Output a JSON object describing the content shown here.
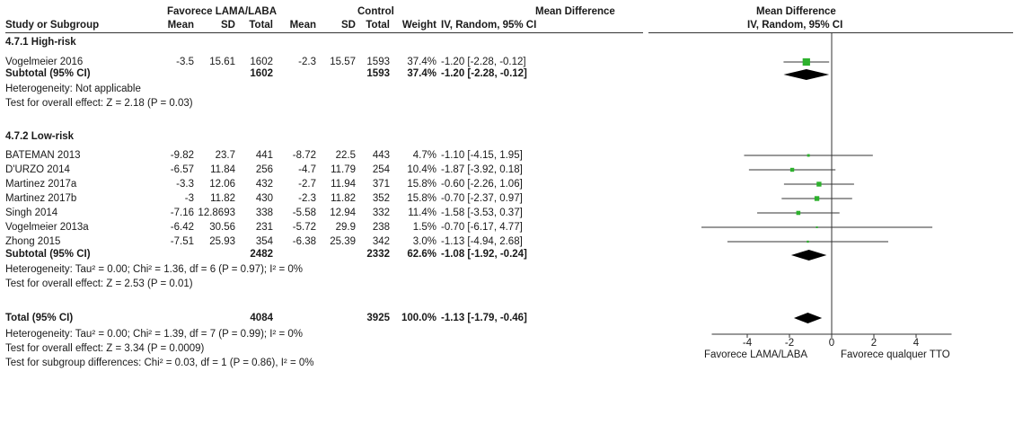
{
  "header": {
    "group_exp": "Favorece LAMA/LABA",
    "group_ctrl": "Control",
    "md_title": "Mean Difference",
    "md_method": "IV, Random, 95% CI",
    "plot_title": "Mean Difference",
    "plot_method": "IV, Random, 95% CI",
    "cols": {
      "study": "Study or Subgroup",
      "mean1": "Mean",
      "sd1": "SD",
      "total1": "Total",
      "mean2": "Mean",
      "sd2": "SD",
      "total2": "Total",
      "weight": "Weight"
    }
  },
  "subgroups": [
    {
      "title": "4.7.1 High-risk",
      "studies": [
        {
          "name": "Vogelmeier 2016",
          "mean1": "-3.5",
          "sd1": "15.61",
          "total1": "1602",
          "mean2": "-2.3",
          "sd2": "15.57",
          "total2": "1593",
          "weight": "37.4%",
          "ci_text": "-1.20 [-2.28, -0.12]"
        }
      ],
      "subtotal": {
        "label": "Subtotal (95% CI)",
        "total1": "1602",
        "total2": "1593",
        "weight": "37.4%",
        "ci_text": "-1.20 [-2.28, -0.12]"
      },
      "heterogeneity": "Heterogeneity: Not applicable",
      "overall": "Test for overall effect: Z = 2.18 (P = 0.03)"
    },
    {
      "title": "4.7.2 Low-risk",
      "studies": [
        {
          "name": "BATEMAN 2013",
          "mean1": "-9.82",
          "sd1": "23.7",
          "total1": "441",
          "mean2": "-8.72",
          "sd2": "22.5",
          "total2": "443",
          "weight": "4.7%",
          "ci_text": "-1.10 [-4.15, 1.95]"
        },
        {
          "name": "D'URZO 2014",
          "mean1": "-6.57",
          "sd1": "11.84",
          "total1": "256",
          "mean2": "-4.7",
          "sd2": "11.79",
          "total2": "254",
          "weight": "10.4%",
          "ci_text": "-1.87 [-3.92, 0.18]"
        },
        {
          "name": "Martinez 2017a",
          "mean1": "-3.3",
          "sd1": "12.06",
          "total1": "432",
          "mean2": "-2.7",
          "sd2": "11.94",
          "total2": "371",
          "weight": "15.8%",
          "ci_text": "-0.60 [-2.26, 1.06]"
        },
        {
          "name": "Martinez 2017b",
          "mean1": "-3",
          "sd1": "11.82",
          "total1": "430",
          "mean2": "-2.3",
          "sd2": "11.82",
          "total2": "352",
          "weight": "15.8%",
          "ci_text": "-0.70 [-2.37, 0.97]"
        },
        {
          "name": "Singh 2014",
          "mean1": "-7.16",
          "sd1": "12.8693",
          "total1": "338",
          "mean2": "-5.58",
          "sd2": "12.94",
          "total2": "332",
          "weight": "11.4%",
          "ci_text": "-1.58 [-3.53, 0.37]"
        },
        {
          "name": "Vogelmeier 2013a",
          "mean1": "-6.42",
          "sd1": "30.56",
          "total1": "231",
          "mean2": "-5.72",
          "sd2": "29.9",
          "total2": "238",
          "weight": "1.5%",
          "ci_text": "-0.70 [-6.17, 4.77]"
        },
        {
          "name": "Zhong 2015",
          "mean1": "-7.51",
          "sd1": "25.93",
          "total1": "354",
          "mean2": "-6.38",
          "sd2": "25.39",
          "total2": "342",
          "weight": "3.0%",
          "ci_text": "-1.13 [-4.94, 2.68]"
        }
      ],
      "subtotal": {
        "label": "Subtotal (95% CI)",
        "total1": "2482",
        "total2": "2332",
        "weight": "62.6%",
        "ci_text": "-1.08 [-1.92, -0.24]"
      },
      "heterogeneity": "Heterogeneity: Tau² = 0.00; Chi² = 1.36, df = 6 (P = 0.97); I² = 0%",
      "overall": "Test for overall effect: Z = 2.53 (P = 0.01)"
    }
  ],
  "total": {
    "label": "Total (95% CI)",
    "total1": "4084",
    "total2": "3925",
    "weight": "100.0%",
    "ci_text": "-1.13 [-1.79, -0.46]",
    "heterogeneity": "Heterogeneity: Tau² = 0.00; Chi² = 1.39, df = 7 (P = 0.99); I² = 0%",
    "overall": "Test for overall effect: Z = 3.34 (P = 0.0009)",
    "subgroup_diff": "Test for subgroup differences: Chi² = 0.03, df = 1 (P = 0.86), I² = 0%"
  },
  "axis": {
    "left_label": "Favorece LAMA/LABA",
    "right_label": "Favorece qualquer TTO"
  },
  "colors": {
    "study_marker": "#2db12d",
    "diamond": "#000000",
    "line": "#333333"
  },
  "chart_data": {
    "type": "forest",
    "xlim": [
      -5,
      5
    ],
    "xticks": [
      -4,
      -2,
      0,
      2,
      4
    ],
    "studies": [
      {
        "name": "Vogelmeier 2016",
        "md": -1.2,
        "lo": -2.28,
        "hi": -0.12,
        "weight": 37.4
      },
      {
        "name": "BATEMAN 2013",
        "md": -1.1,
        "lo": -4.15,
        "hi": 1.95,
        "weight": 4.7
      },
      {
        "name": "D'URZO 2014",
        "md": -1.87,
        "lo": -3.92,
        "hi": 0.18,
        "weight": 10.4
      },
      {
        "name": "Martinez 2017a",
        "md": -0.6,
        "lo": -2.26,
        "hi": 1.06,
        "weight": 15.8
      },
      {
        "name": "Martinez 2017b",
        "md": -0.7,
        "lo": -2.37,
        "hi": 0.97,
        "weight": 15.8
      },
      {
        "name": "Singh 2014",
        "md": -1.58,
        "lo": -3.53,
        "hi": 0.37,
        "weight": 11.4
      },
      {
        "name": "Vogelmeier 2013a",
        "md": -0.7,
        "lo": -6.17,
        "hi": 4.77,
        "weight": 1.5
      },
      {
        "name": "Zhong 2015",
        "md": -1.13,
        "lo": -4.94,
        "hi": 2.68,
        "weight": 3.0
      }
    ],
    "summaries": [
      {
        "name": "Subtotal 4.7.1 High-risk",
        "md": -1.2,
        "lo": -2.28,
        "hi": -0.12
      },
      {
        "name": "Subtotal 4.7.2 Low-risk",
        "md": -1.08,
        "lo": -1.92,
        "hi": -0.24
      },
      {
        "name": "Total",
        "md": -1.13,
        "lo": -1.79,
        "hi": -0.46
      }
    ]
  }
}
